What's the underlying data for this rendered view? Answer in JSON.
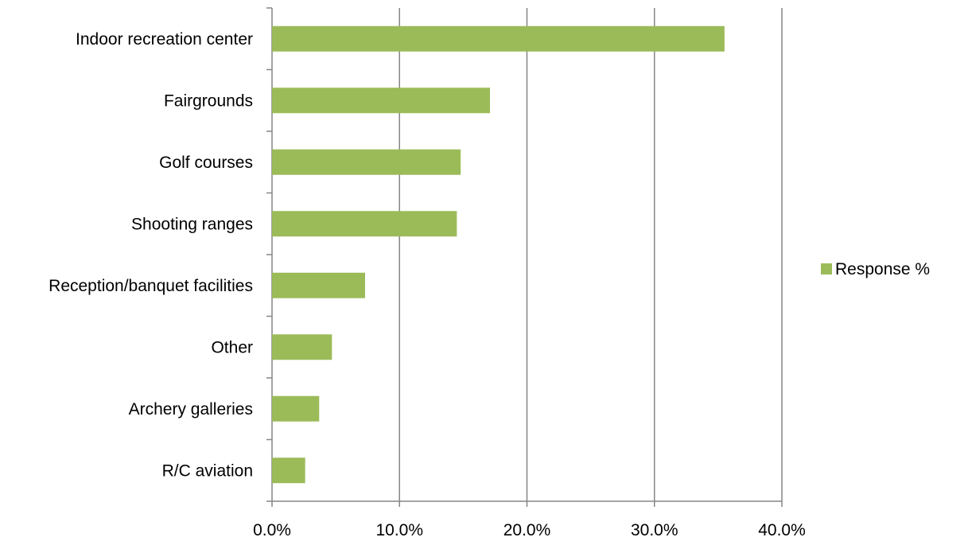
{
  "chart_data": {
    "type": "bar",
    "orientation": "horizontal",
    "categories": [
      "Indoor recreation center",
      "Fairgrounds",
      "Golf courses",
      "Shooting ranges",
      "Reception/banquet facilities",
      "Other",
      "Archery galleries",
      "R/C aviation"
    ],
    "series": [
      {
        "name": "Response %",
        "values": [
          35.5,
          17.1,
          14.8,
          14.5,
          7.3,
          4.7,
          3.7,
          2.6
        ],
        "color": "#9BBB59"
      }
    ],
    "xlim": [
      0,
      40
    ],
    "xticks": [
      "0.0%",
      "10.0%",
      "20.0%",
      "30.0%",
      "40.0%"
    ],
    "grid": "vertical",
    "legend_position": "right",
    "gridline_color": "#868686",
    "axis_color": "#868686"
  }
}
